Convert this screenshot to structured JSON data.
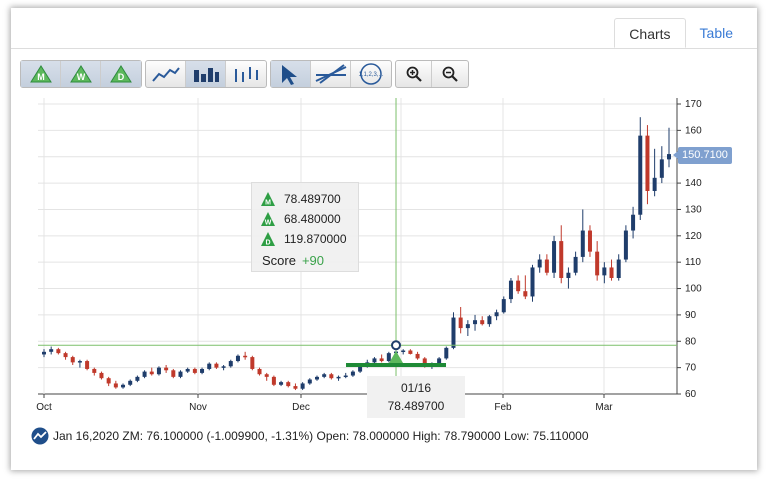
{
  "tabs": [
    {
      "label": "Charts",
      "active": true
    },
    {
      "label": "Table",
      "active": false
    }
  ],
  "toolbar": {
    "period_buttons": [
      {
        "name": "monthly-button",
        "letter": "M",
        "active": true
      },
      {
        "name": "weekly-button",
        "letter": "W",
        "active": true
      },
      {
        "name": "daily-button",
        "letter": "D",
        "active": true
      }
    ],
    "chart_type_buttons": [
      "line-chart-icon",
      "bar-chart-icon",
      "ohlc-chart-icon"
    ],
    "tool_buttons": [
      "pointer-icon",
      "trendline-icon",
      "fibonacci-icon"
    ],
    "fibonacci_label": "1,1,2,3,...",
    "zoom_buttons": [
      "zoom-in-icon",
      "zoom-out-icon"
    ]
  },
  "colors": {
    "up": "#1f3d6b",
    "down": "#c0392b",
    "grid": "#e4e4e4",
    "crosshair": "#7cbf6a",
    "score_green": "#3aa24a",
    "price_tag": "#7fa0cf",
    "marker_bar": "#1e8a36"
  },
  "tooltip": {
    "monthly_value": "78.489700",
    "weekly_value": "68.480000",
    "daily_value": "119.870000",
    "score_label": "Score",
    "score_value": "+90"
  },
  "crosshair": {
    "date_label": "01/16",
    "value_label": "78.489700"
  },
  "price_tag": "150.7100",
  "status": {
    "text": "Jan 16,2020 ZM: 76.100000 (-1.009900, -1.31%) Open: 78.000000 High: 78.790000 Low: 75.110000"
  },
  "chart_data": {
    "type": "candlestick",
    "x_labels": [
      "Oct",
      "Nov",
      "Dec",
      "Feb",
      "Mar"
    ],
    "y_ticks": [
      60,
      70,
      80,
      90,
      100,
      110,
      120,
      130,
      140,
      150,
      160,
      170
    ],
    "ylim": [
      60,
      170
    ],
    "grid": true,
    "crosshair_price": 78.4897,
    "last_price": 150.71,
    "candles": [
      [
        75,
        77,
        74,
        76
      ],
      [
        76,
        78,
        75,
        77
      ],
      [
        77,
        77.5,
        75,
        75.5
      ],
      [
        75.5,
        76,
        73,
        74
      ],
      [
        74,
        74.5,
        71,
        72
      ],
      [
        72,
        73,
        70,
        72.5
      ],
      [
        72.5,
        73,
        69,
        69.5
      ],
      [
        69.5,
        70,
        67,
        68
      ],
      [
        68,
        68.5,
        65.5,
        66
      ],
      [
        66,
        66.5,
        63,
        64
      ],
      [
        64,
        65,
        62,
        62.5
      ],
      [
        62.5,
        64,
        62,
        63.5
      ],
      [
        63.5,
        65.5,
        63,
        65
      ],
      [
        65,
        67,
        64.5,
        66.5
      ],
      [
        66.5,
        69,
        66,
        68.5
      ],
      [
        68.5,
        70,
        67,
        67.5
      ],
      [
        67.5,
        70.5,
        67,
        70
      ],
      [
        70,
        71,
        68,
        69
      ],
      [
        69,
        69.5,
        66,
        66.5
      ],
      [
        66.5,
        69,
        66,
        68.5
      ],
      [
        68.5,
        70,
        68,
        69.5
      ],
      [
        69.5,
        70,
        67.5,
        68
      ],
      [
        68,
        70,
        67.5,
        69.5
      ],
      [
        69.5,
        72,
        69,
        71.5
      ],
      [
        71.5,
        72,
        69.5,
        70
      ],
      [
        70,
        71,
        69,
        70.5
      ],
      [
        70.5,
        73,
        70,
        72.5
      ],
      [
        72.5,
        75,
        72,
        74.5
      ],
      [
        74.5,
        76,
        73,
        74
      ],
      [
        74,
        74.5,
        69,
        69.5
      ],
      [
        69.5,
        70,
        67,
        67.5
      ],
      [
        67.5,
        68,
        65,
        66.5
      ],
      [
        66.5,
        67,
        63,
        63.5
      ],
      [
        63.5,
        65,
        63,
        64.5
      ],
      [
        64.5,
        65,
        62.5,
        63
      ],
      [
        63,
        64,
        61.5,
        62
      ],
      [
        62,
        64.5,
        61.5,
        64
      ],
      [
        64,
        66,
        63.5,
        65.5
      ],
      [
        65.5,
        67,
        65,
        66.5
      ],
      [
        66.5,
        68,
        66,
        67.5
      ],
      [
        67.5,
        68,
        65.5,
        66
      ],
      [
        66,
        67,
        65,
        66.5
      ],
      [
        66.5,
        68,
        66,
        67
      ],
      [
        67,
        69,
        66.5,
        68.5
      ],
      [
        68.5,
        71,
        68,
        70.5
      ],
      [
        70.5,
        73,
        70,
        72
      ],
      [
        72,
        74,
        71.5,
        73.5
      ],
      [
        73.5,
        75,
        72,
        72.5
      ],
      [
        72.5,
        76,
        72,
        75.5
      ],
      [
        75.5,
        78.8,
        75.1,
        76.1
      ],
      [
        76.1,
        77,
        75,
        76.5
      ],
      [
        76.5,
        77,
        75,
        75.2
      ],
      [
        75.2,
        76,
        73,
        73.5
      ],
      [
        73.5,
        74,
        70,
        70.5
      ],
      [
        70.5,
        72,
        69.5,
        71.5
      ],
      [
        71.5,
        74,
        71,
        73.5
      ],
      [
        73.5,
        78,
        73,
        77.5
      ],
      [
        77.5,
        91,
        77,
        89
      ],
      [
        89,
        93,
        83,
        85
      ],
      [
        85,
        88,
        82,
        86.5
      ],
      [
        86.5,
        90,
        84,
        88
      ],
      [
        88,
        89.5,
        86,
        86.5
      ],
      [
        86.5,
        90,
        85.5,
        89.5
      ],
      [
        89.5,
        92,
        88,
        91
      ],
      [
        91,
        97,
        90.5,
        96
      ],
      [
        96,
        104,
        94.5,
        103
      ],
      [
        103,
        105,
        98,
        99
      ],
      [
        99,
        105,
        96,
        97
      ],
      [
        97,
        109,
        95,
        108
      ],
      [
        108,
        113,
        106,
        111
      ],
      [
        111,
        113,
        105,
        106
      ],
      [
        106,
        120,
        104,
        118
      ],
      [
        118,
        124,
        102,
        104
      ],
      [
        104,
        108,
        100,
        106
      ],
      [
        106,
        114,
        105,
        112
      ],
      [
        112,
        130,
        110,
        122
      ],
      [
        122,
        124,
        112,
        114
      ],
      [
        114,
        118,
        103,
        105
      ],
      [
        105,
        110,
        102,
        108
      ],
      [
        108,
        111,
        103,
        104
      ],
      [
        104,
        113,
        103,
        111
      ],
      [
        111,
        124,
        110,
        122
      ],
      [
        122,
        131,
        119,
        128
      ],
      [
        128,
        165,
        126,
        158
      ],
      [
        158,
        162,
        132,
        137
      ],
      [
        137,
        153,
        135,
        142
      ],
      [
        142,
        154,
        140,
        149
      ],
      [
        149,
        161,
        146,
        151
      ]
    ]
  }
}
